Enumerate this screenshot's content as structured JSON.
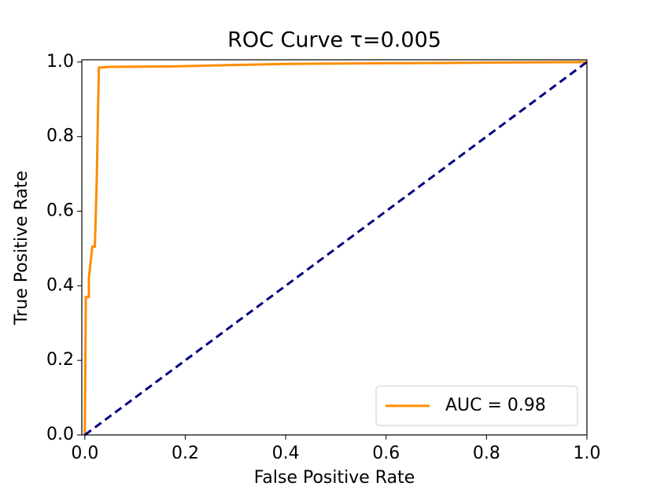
{
  "chart_data": {
    "type": "line",
    "title": "ROC Curve τ=0.005",
    "xlabel": "False Positive Rate",
    "ylabel": "True Positive Rate",
    "series": [
      {
        "name": "AUC = 0.98",
        "color": "#ff8c00",
        "dashed": false,
        "x": [
          0.0,
          0.002,
          0.008,
          0.008,
          0.012,
          0.015,
          0.02,
          0.022,
          0.024,
          0.026,
          0.028,
          0.05,
          0.17,
          0.3,
          0.4,
          1.0
        ],
        "values": [
          0.0,
          0.37,
          0.37,
          0.42,
          0.47,
          0.505,
          0.505,
          0.6,
          0.7,
          0.85,
          0.985,
          0.987,
          0.988,
          0.992,
          0.995,
          1.0
        ]
      },
      {
        "color": "#000080",
        "dashed": true,
        "x": [
          0.0,
          1.0
        ],
        "values": [
          0.0,
          1.0
        ]
      }
    ],
    "xlim": [
      -0.006,
      1.0
    ],
    "ylim": [
      0.0,
      1.006
    ],
    "xticks": [
      {
        "value": 0,
        "label": "0.0"
      },
      0.2,
      0.4,
      0.6,
      0.8,
      {
        "value": 1,
        "label": "1.0"
      }
    ],
    "yticks": [
      {
        "value": 0,
        "label": "0.0"
      },
      0.2,
      0.4,
      0.6,
      0.8,
      {
        "value": 1,
        "label": "1.0"
      }
    ],
    "legend": "lower right",
    "grid": false
  }
}
